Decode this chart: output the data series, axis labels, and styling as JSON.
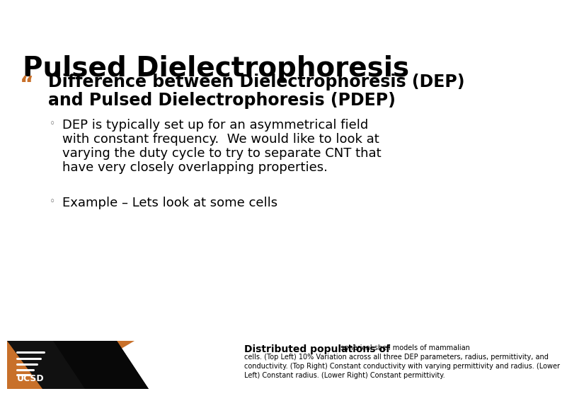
{
  "title": "Pulsed Dielectrophoresis",
  "title_color": "#000000",
  "title_fontsize": 28,
  "bg_color": "#ffffff",
  "bullet_color": "#c8702a",
  "bullet_char": "“",
  "bullet_text_line1": "Difference between Dielectrophoresis (DEP)",
  "bullet_text_line2": "and Pulsed Dielectrophoresis (PDEP)",
  "bullet_fontsize": 17,
  "sub_bullet_char": "◦",
  "sub_bullet1_lines": [
    "DEP is typically set up for an asymmetrical field",
    "with constant frequency.  We would like to look at",
    "varying the duty cycle to try to separate CNT that",
    "have very closely overlapping properties."
  ],
  "sub_bullet2_lines": [
    "Example – Lets look at some cells"
  ],
  "sub_bullet_fontsize": 13,
  "footer_bold": "Distributed populations of",
  "footer_small": " spherical shell models of mammalian\ncells. (Top Left) 10% Variation across all three DEP parameters, radius, permittivity, and\nconductivity. (Top Right) Constant conductivity with varying permittivity and radius. (Lower\nLeft) Constant radius. (Lower Right) Constant permittivity.",
  "footer_bold_fontsize": 10,
  "footer_small_fontsize": 7,
  "orange_color": "#c8702a",
  "ucsd_text": "UCSD"
}
